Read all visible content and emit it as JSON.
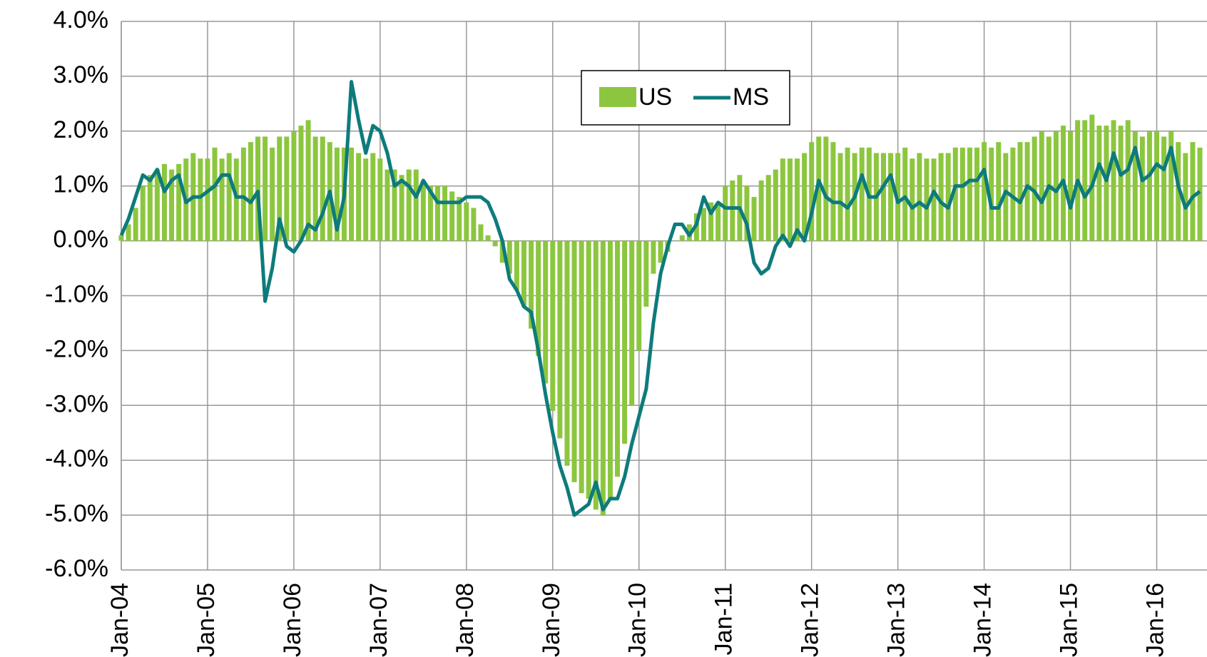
{
  "chart_data": {
    "type": "bar_line",
    "categories": [
      "Jan-04",
      null,
      null,
      null,
      null,
      null,
      null,
      null,
      null,
      null,
      null,
      null,
      "Jan-05",
      null,
      null,
      null,
      null,
      null,
      null,
      null,
      null,
      null,
      null,
      null,
      "Jan-06",
      null,
      null,
      null,
      null,
      null,
      null,
      null,
      null,
      null,
      null,
      null,
      "Jan-07",
      null,
      null,
      null,
      null,
      null,
      null,
      null,
      null,
      null,
      null,
      null,
      "Jan-08",
      null,
      null,
      null,
      null,
      null,
      null,
      null,
      null,
      null,
      null,
      null,
      "Jan-09",
      null,
      null,
      null,
      null,
      null,
      null,
      null,
      null,
      null,
      null,
      null,
      "Jan-10",
      null,
      null,
      null,
      null,
      null,
      null,
      null,
      null,
      null,
      null,
      null,
      "Jan-11",
      null,
      null,
      null,
      null,
      null,
      null,
      null,
      null,
      null,
      null,
      null,
      "Jan-12",
      null,
      null,
      null,
      null,
      null,
      null,
      null,
      null,
      null,
      null,
      null,
      "Jan-13",
      null,
      null,
      null,
      null,
      null,
      null,
      null,
      null,
      null,
      null,
      null,
      "Jan-14",
      null,
      null,
      null,
      null,
      null,
      null,
      null,
      null,
      null,
      null,
      null,
      "Jan-15",
      null,
      null,
      null,
      null,
      null,
      null,
      null,
      null,
      null,
      null,
      null,
      "Jan-16",
      null,
      null,
      null,
      null,
      null,
      null
    ],
    "series": [
      {
        "name": "US",
        "kind": "bar",
        "color": "#8cc63f",
        "values": [
          0.1,
          0.3,
          0.6,
          1.0,
          1.2,
          1.3,
          1.4,
          1.3,
          1.4,
          1.5,
          1.6,
          1.5,
          1.5,
          1.7,
          1.5,
          1.6,
          1.5,
          1.7,
          1.8,
          1.9,
          1.9,
          1.7,
          1.9,
          1.9,
          2.0,
          2.1,
          2.2,
          1.9,
          1.9,
          1.8,
          1.7,
          1.7,
          1.7,
          1.6,
          1.5,
          1.6,
          1.5,
          1.3,
          1.3,
          1.2,
          1.3,
          1.3,
          1.1,
          1.0,
          1.0,
          1.0,
          0.9,
          0.8,
          0.7,
          0.6,
          0.3,
          0.1,
          -0.1,
          -0.4,
          -0.6,
          -0.9,
          -1.2,
          -1.6,
          -2.1,
          -2.6,
          -3.1,
          -3.6,
          -4.1,
          -4.4,
          -4.6,
          -4.7,
          -4.9,
          -5.0,
          -4.7,
          -4.3,
          -3.7,
          -3.0,
          -2.0,
          -1.2,
          -0.6,
          -0.4,
          -0.2,
          0.0,
          0.1,
          0.3,
          0.5,
          0.6,
          0.7,
          0.7,
          1.0,
          1.1,
          1.2,
          1.0,
          0.8,
          1.1,
          1.2,
          1.3,
          1.5,
          1.5,
          1.5,
          1.6,
          1.8,
          1.9,
          1.9,
          1.8,
          1.6,
          1.7,
          1.6,
          1.7,
          1.7,
          1.6,
          1.6,
          1.6,
          1.6,
          1.7,
          1.5,
          1.6,
          1.5,
          1.5,
          1.6,
          1.6,
          1.7,
          1.7,
          1.7,
          1.7,
          1.8,
          1.7,
          1.8,
          1.6,
          1.7,
          1.8,
          1.8,
          1.9,
          2.0,
          1.9,
          2.0,
          2.1,
          2.0,
          2.2,
          2.2,
          2.3,
          2.1,
          2.1,
          2.2,
          2.1,
          2.2,
          2.0,
          1.9,
          2.0,
          2.0,
          1.9,
          2.0,
          1.8,
          1.6,
          1.8,
          1.7
        ]
      },
      {
        "name": "MS",
        "kind": "line",
        "color": "#0e7b7b",
        "values": [
          0.1,
          0.4,
          0.8,
          1.2,
          1.1,
          1.3,
          0.9,
          1.1,
          1.2,
          0.7,
          0.8,
          0.8,
          0.9,
          1.0,
          1.2,
          1.2,
          0.8,
          0.8,
          0.7,
          0.9,
          -1.1,
          -0.5,
          0.4,
          -0.1,
          -0.2,
          0.0,
          0.3,
          0.2,
          0.5,
          0.9,
          0.2,
          0.8,
          2.9,
          2.2,
          1.6,
          2.1,
          2.0,
          1.6,
          1.0,
          1.1,
          1.0,
          0.8,
          1.1,
          0.9,
          0.7,
          0.7,
          0.7,
          0.7,
          0.8,
          0.8,
          0.8,
          0.7,
          0.4,
          0.0,
          -0.7,
          -0.9,
          -1.2,
          -1.3,
          -2.0,
          -2.8,
          -3.5,
          -4.1,
          -4.5,
          -5.0,
          -4.9,
          -4.8,
          -4.4,
          -4.9,
          -4.7,
          -4.7,
          -4.3,
          -3.7,
          -3.2,
          -2.7,
          -1.5,
          -0.6,
          -0.1,
          0.3,
          0.3,
          0.1,
          0.3,
          0.8,
          0.5,
          0.7,
          0.6,
          0.6,
          0.6,
          0.3,
          -0.4,
          -0.6,
          -0.5,
          -0.1,
          0.1,
          -0.1,
          0.2,
          0.0,
          0.5,
          1.1,
          0.8,
          0.7,
          0.7,
          0.6,
          0.8,
          1.2,
          0.8,
          0.8,
          1.0,
          1.2,
          0.7,
          0.8,
          0.6,
          0.7,
          0.6,
          0.9,
          0.7,
          0.6,
          1.0,
          1.0,
          1.1,
          1.1,
          1.3,
          0.6,
          0.6,
          0.9,
          0.8,
          0.7,
          1.0,
          0.9,
          0.7,
          1.0,
          0.9,
          1.1,
          0.6,
          1.1,
          0.8,
          1.0,
          1.4,
          1.1,
          1.6,
          1.2,
          1.3,
          1.7,
          1.1,
          1.2,
          1.4,
          1.3,
          1.7,
          1.0,
          0.6,
          0.8,
          0.9
        ]
      }
    ],
    "ylim": [
      -6,
      4
    ],
    "yticks": [
      {
        "value": 4,
        "label": "4.0%"
      },
      {
        "value": 3,
        "label": "3.0%"
      },
      {
        "value": 2,
        "label": "2.0%"
      },
      {
        "value": 1,
        "label": "1.0%"
      },
      {
        "value": 0,
        "label": "0.0%"
      },
      {
        "value": -1,
        "label": "-1.0%"
      },
      {
        "value": -2,
        "label": "-2.0%"
      },
      {
        "value": -3,
        "label": "-3.0%"
      },
      {
        "value": -4,
        "label": "-4.0%"
      },
      {
        "value": -5,
        "label": "-5.0%"
      },
      {
        "value": -6,
        "label": "-6.0%"
      }
    ],
    "grid": true
  }
}
